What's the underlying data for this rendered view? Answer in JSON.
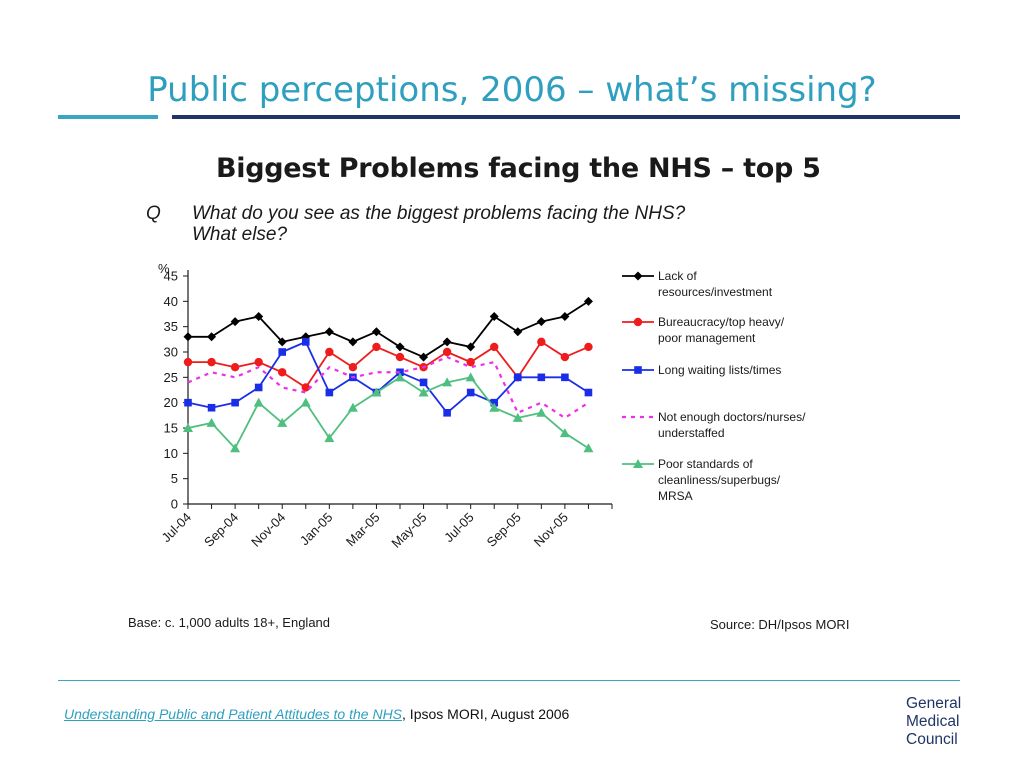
{
  "slide": {
    "title": "Public perceptions, 2006 – what’s missing?"
  },
  "chart_heading": "Biggest Problems facing the NHS – top 5",
  "question": {
    "label": "Q",
    "text_line1": "What do you see as the biggest problems facing the NHS?",
    "text_line2": "What else?"
  },
  "notes": {
    "base": "Base: c. 1,000 adults 18+, England",
    "source": "Source: DH/Ipsos MORI"
  },
  "footer": {
    "link_text": "Understanding Public and Patient Attitudes to the NHS",
    "rest_text": ", Ipsos MORI, August 2006"
  },
  "logo": {
    "line1": "General",
    "line2": "Medical",
    "line3": "Council"
  },
  "chart_data": {
    "type": "line",
    "ylabel": "%",
    "ylim": [
      0,
      45
    ],
    "yticks": [
      0,
      5,
      10,
      15,
      20,
      25,
      30,
      35,
      40,
      45
    ],
    "x": [
      "Jul-04",
      "Aug-04",
      "Sep-04",
      "Oct-04",
      "Nov-04",
      "Dec-04",
      "Jan-05",
      "Feb-05",
      "Mar-05",
      "Apr-05",
      "May-05",
      "Jun-05",
      "Jul-05",
      "Aug-05",
      "Sep-05",
      "Oct-05",
      "Nov-05",
      "Dec-05",
      "Jan-06"
    ],
    "x_tick_labels": [
      "Jul-04",
      "Sep-04",
      "Nov-04",
      "Jan-05",
      "Mar-05",
      "May-05",
      "Jul-05",
      "Sep-05",
      "Nov-05"
    ],
    "legend_position": "right",
    "grid": false,
    "series": [
      {
        "name_line1": "Lack of",
        "name_line2": "resources/investment",
        "color": "#000000",
        "marker": "diamond",
        "dash": false,
        "values": [
          33,
          33,
          36,
          37,
          32,
          33,
          34,
          32,
          34,
          31,
          29,
          32,
          31,
          37,
          34,
          36,
          37,
          40,
          null
        ]
      },
      {
        "name_line1": "Bureaucracy/top heavy/",
        "name_line2": "poor management",
        "color": "#ee1c1c",
        "marker": "circle",
        "dash": false,
        "values": [
          28,
          28,
          27,
          28,
          26,
          23,
          30,
          27,
          31,
          29,
          27,
          30,
          28,
          31,
          25,
          32,
          29,
          31,
          null
        ]
      },
      {
        "name_line1": "Long waiting lists/times",
        "name_line2": "",
        "color": "#1a2ee8",
        "marker": "square",
        "dash": false,
        "values": [
          20,
          19,
          20,
          23,
          30,
          32,
          22,
          25,
          22,
          26,
          24,
          18,
          22,
          20,
          25,
          25,
          25,
          22,
          null
        ]
      },
      {
        "name_line1": "Not enough doctors/nurses/",
        "name_line2": "understaffed",
        "color": "#ee2ee8",
        "marker": "none",
        "dash": true,
        "values": [
          24,
          26,
          25,
          27,
          23,
          22,
          27,
          25,
          26,
          26,
          27,
          29,
          27,
          28,
          18,
          20,
          17,
          20,
          null
        ]
      },
      {
        "name_line1": "Poor standards of",
        "name_line2": "cleanliness/superbugs/",
        "name_line3": "MRSA",
        "color": "#4fbf7f",
        "marker": "triangle",
        "dash": false,
        "values": [
          15,
          16,
          11,
          20,
          16,
          20,
          13,
          19,
          22,
          25,
          22,
          24,
          25,
          19,
          17,
          18,
          14,
          11,
          null
        ]
      }
    ]
  }
}
